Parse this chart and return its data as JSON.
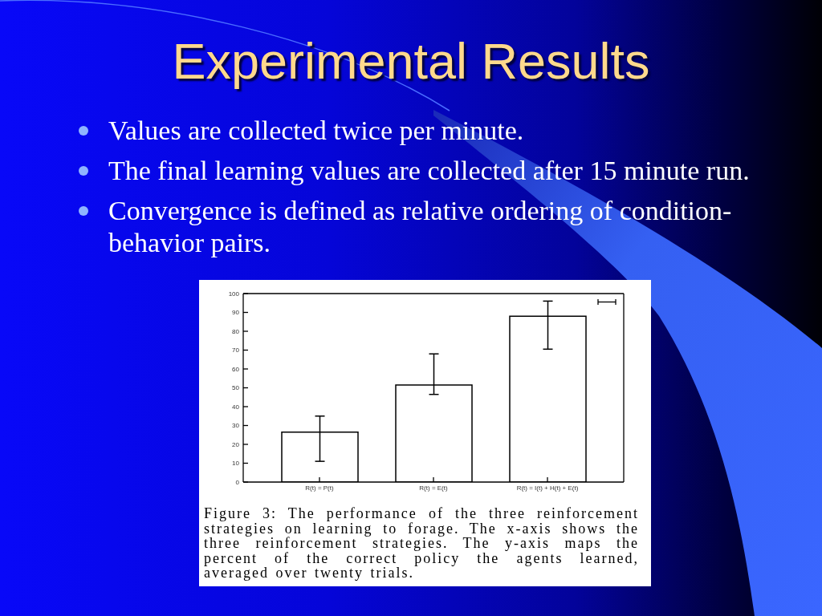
{
  "chart_data": {
    "type": "bar",
    "title": "Experimental Results",
    "categories": [
      "R(t) = P(t)",
      "R(t) = E(t)",
      "R(t) = I(t) + H(t) + E(t)"
    ],
    "values": [
      26.5,
      51.5,
      88
    ],
    "color": "#ffffff",
    "errors": [
      [
        11,
        35
      ],
      [
        46.5,
        68
      ],
      [
        70.5,
        96
      ]
    ],
    "ylim": [
      0,
      100
    ],
    "yticks": [
      0,
      10,
      20,
      30,
      40,
      50,
      60,
      70,
      80,
      90,
      100
    ],
    "annotations": [
      "Values are collected twice per minute.",
      "The final learning values are collected after 15 minute run.",
      "Convergence is defined as relative ordering of condition-behavior pairs.",
      "Figure 3: The performance of the three reinforcement strategies on learning to forage. The x-axis shows the three reinforcement strategies. The y-axis maps the percent of the correct policy the agents learned, averaged over twenty trials."
    ]
  }
}
